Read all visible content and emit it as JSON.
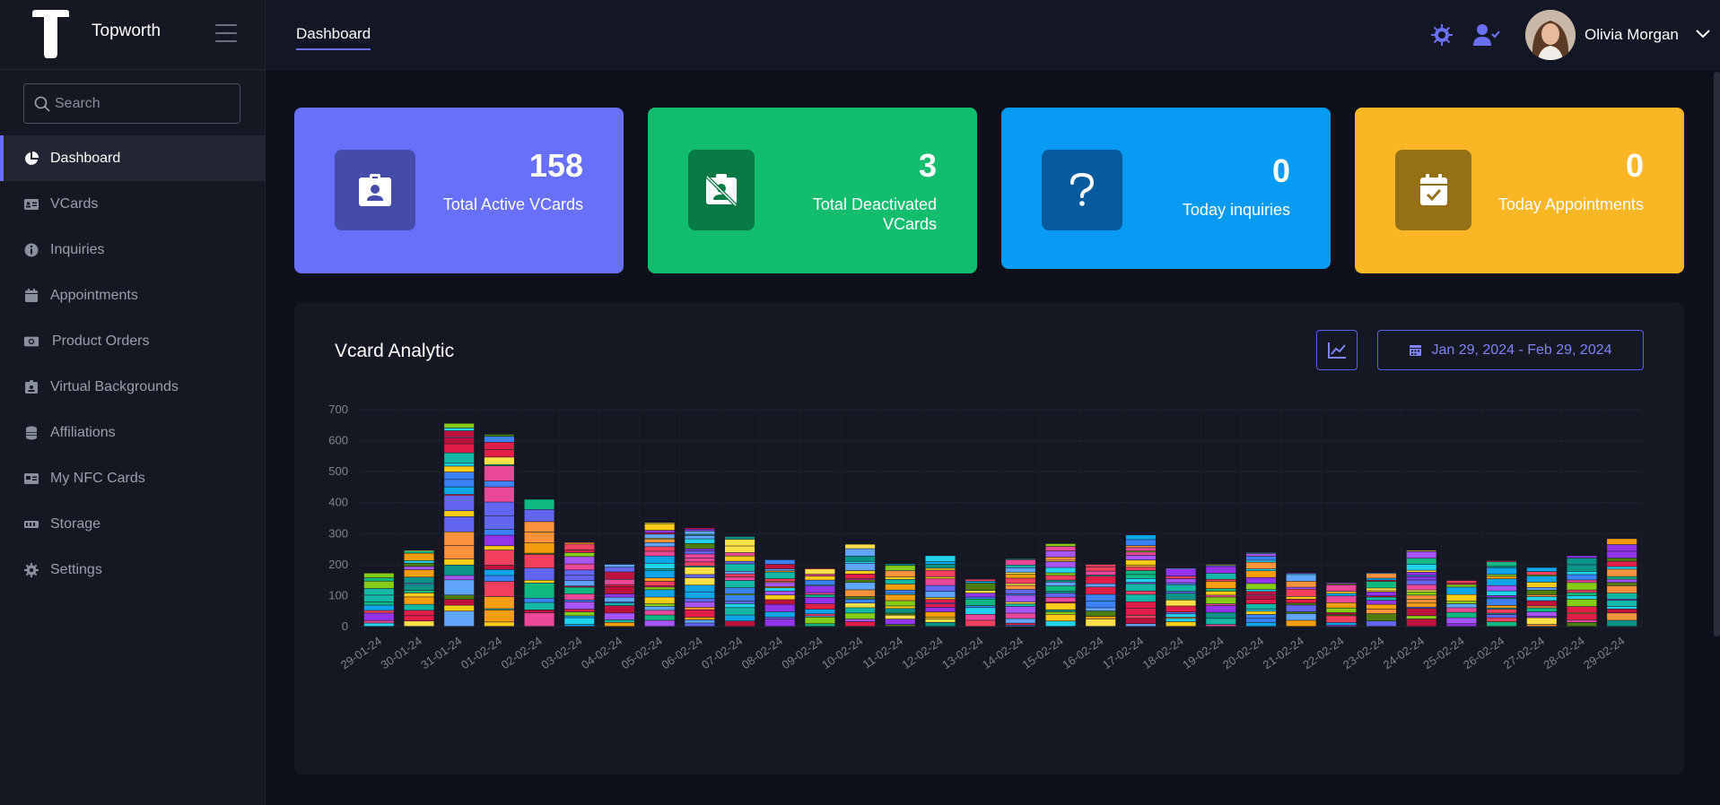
{
  "brand": {
    "name": "Topworth"
  },
  "search": {
    "placeholder": "Search"
  },
  "sidebar": {
    "items": [
      {
        "label": "Dashboard",
        "icon": "pie-chart-icon",
        "active": true
      },
      {
        "label": "VCards",
        "icon": "id-card-icon"
      },
      {
        "label": "Inquiries",
        "icon": "info-icon"
      },
      {
        "label": "Appointments",
        "icon": "calendar-icon"
      },
      {
        "label": "Product Orders",
        "icon": "camera-icon"
      },
      {
        "label": "Virtual Backgrounds",
        "icon": "badge-icon"
      },
      {
        "label": "Affiliations",
        "icon": "coins-icon"
      },
      {
        "label": "My NFC Cards",
        "icon": "nfc-card-icon"
      },
      {
        "label": "Storage",
        "icon": "storage-icon"
      },
      {
        "label": "Settings",
        "icon": "gear-icon"
      }
    ]
  },
  "header": {
    "tab": "Dashboard",
    "user_name": "Olivia Morgan"
  },
  "cards": [
    {
      "value": "158",
      "label": "Total Active VCards",
      "color": "#6870fb",
      "icon": "id-badge-icon"
    },
    {
      "value": "3",
      "label": "Total Deactivated VCards",
      "color": "#12bd6e",
      "icon": "id-badge-slash-icon"
    },
    {
      "value": "0",
      "label": "Today inquiries",
      "color": "#079bf3",
      "icon": "question-icon"
    },
    {
      "value": "0",
      "label": "Today Appointments",
      "color": "#fbb626",
      "icon": "calendar-check-icon"
    }
  ],
  "analytics": {
    "title": "Vcard Analytic",
    "date_range": "Jan 29, 2024 - Feb 29, 2024"
  },
  "chart_data": {
    "type": "bar",
    "stacked": true,
    "categories": [
      "29-01-24",
      "30-01-24",
      "31-01-24",
      "01-02-24",
      "02-02-24",
      "03-02-24",
      "04-02-24",
      "05-02-24",
      "06-02-24",
      "07-02-24",
      "08-02-24",
      "09-02-24",
      "10-02-24",
      "11-02-24",
      "12-02-24",
      "13-02-24",
      "14-02-24",
      "15-02-24",
      "16-02-24",
      "17-02-24",
      "18-02-24",
      "19-02-24",
      "20-02-24",
      "21-02-24",
      "22-02-24",
      "23-02-24",
      "24-02-24",
      "25-02-24",
      "26-02-24",
      "27-02-24",
      "28-02-24",
      "29-02-24"
    ],
    "totals": [
      172,
      245,
      655,
      620,
      410,
      272,
      200,
      335,
      318,
      290,
      215,
      188,
      265,
      202,
      228,
      152,
      218,
      268,
      200,
      295,
      188,
      200,
      238,
      172,
      142,
      172,
      245,
      148,
      212,
      190,
      228,
      283
    ],
    "ylim": [
      0,
      700
    ],
    "yticks": [
      0,
      100,
      200,
      300,
      400,
      500,
      600,
      700
    ],
    "grid": true,
    "palette": [
      "#f59e0b",
      "#60a5fa",
      "#f43f5e",
      "#10b981",
      "#a855f7",
      "#facc15",
      "#3b82f6",
      "#e11d48",
      "#14b8a6",
      "#84cc16",
      "#fb923c",
      "#6366f1",
      "#ec4899",
      "#22d3ee",
      "#4d7c0f",
      "#be123c",
      "#0ea5e9",
      "#fde047",
      "#0d9488",
      "#9333ea"
    ]
  }
}
